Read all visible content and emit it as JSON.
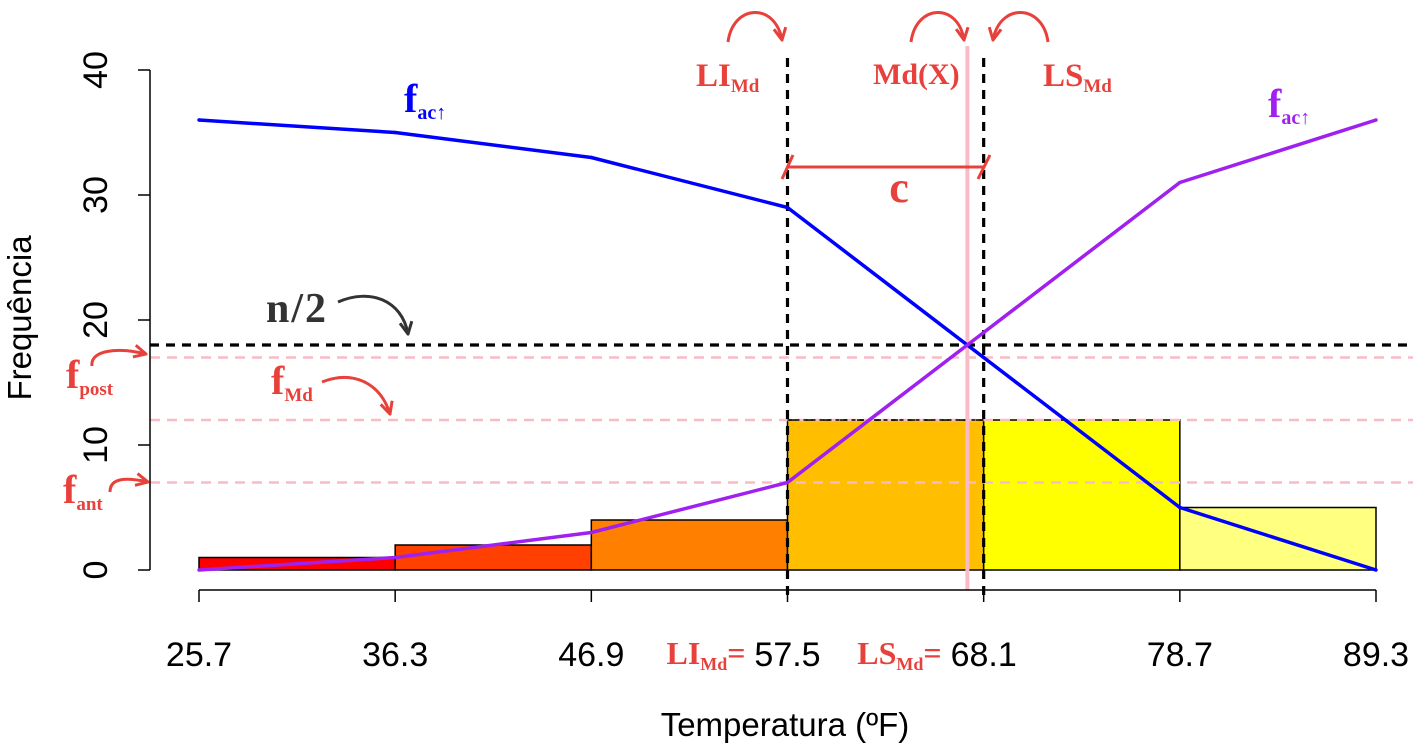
{
  "chart_data": {
    "type": "bar",
    "xlabel": "Temperatura (ºF)",
    "ylabel": "Frequência",
    "xlim": [
      25.7,
      89.3
    ],
    "ylim": [
      0,
      40
    ],
    "x_ticks": [
      25.7,
      36.3,
      46.9,
      57.5,
      68.1,
      78.7,
      89.3
    ],
    "y_ticks": [
      0,
      10,
      20,
      30,
      40
    ],
    "x_tick_prefixes": [
      null,
      null,
      null,
      {
        "main": "LI",
        "sub": "Md",
        "tail": "="
      },
      {
        "main": "LS",
        "sub": "Md",
        "tail": "="
      },
      null,
      null
    ],
    "bins": [
      [
        25.7,
        36.3
      ],
      [
        36.3,
        46.9
      ],
      [
        46.9,
        57.5
      ],
      [
        57.5,
        68.1
      ],
      [
        68.1,
        78.7
      ],
      [
        78.7,
        89.3
      ]
    ],
    "frequencies": [
      1,
      2,
      4,
      12,
      12,
      5
    ],
    "bar_colors": [
      "#FF0000",
      "#FF4000",
      "#FF8000",
      "#FFBF00",
      "#FFFF00",
      "#FFFF80"
    ],
    "series": [
      {
        "label": {
          "main": "f",
          "sub": "ac↑"
        },
        "color": "#0000FF",
        "x": [
          25.7,
          36.3,
          46.9,
          57.5,
          68.1,
          78.7,
          89.3
        ],
        "values": [
          36,
          35,
          33,
          29,
          17,
          5,
          0
        ]
      },
      {
        "label": {
          "main": "f",
          "sub": "ac↑"
        },
        "color": "#A020F0",
        "x": [
          25.7,
          36.3,
          46.9,
          57.5,
          68.1,
          78.7,
          89.3
        ],
        "values": [
          0,
          1,
          3,
          7,
          19,
          31,
          36
        ]
      }
    ],
    "reference_lines": {
      "n_half": {
        "value": 18,
        "label": "n/2"
      },
      "f_post": {
        "value": 17,
        "label": {
          "main": "f",
          "sub": "post"
        }
      },
      "f_Md": {
        "value": 12,
        "label": {
          "main": "f",
          "sub": "Md"
        }
      },
      "f_ant": {
        "value": 7,
        "label": {
          "main": "f",
          "sub": "ant"
        }
      },
      "LI_Md": {
        "value": 57.5,
        "label": {
          "main": "LI",
          "sub": "Md"
        }
      },
      "LS_Md": {
        "value": 68.1,
        "label": {
          "main": "LS",
          "sub": "Md"
        }
      },
      "median": {
        "value": 67.22,
        "label": "Md(X)"
      }
    },
    "class_width_label": "c"
  },
  "colors": {
    "annotation": "#E8413C",
    "n_half": "#333333",
    "reference_pink": "#F9BCC6",
    "dashed": "#000000"
  }
}
